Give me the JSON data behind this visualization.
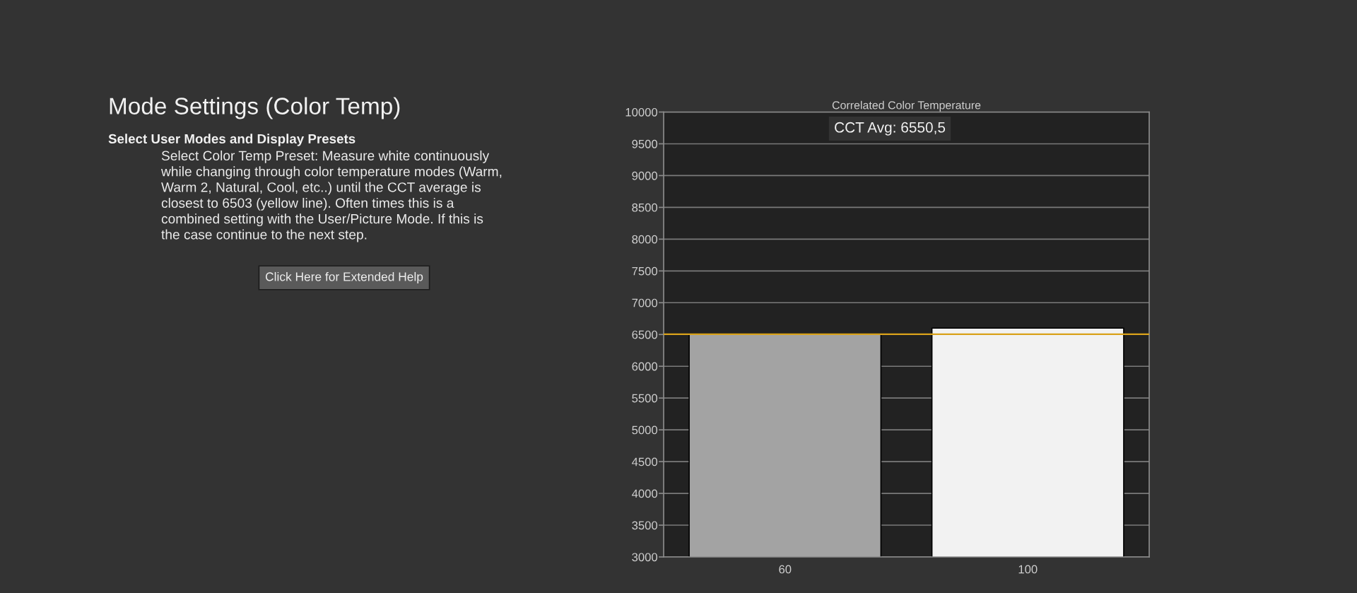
{
  "chart_data": {
    "type": "bar",
    "title": "Correlated Color Temperature",
    "categories": [
      "60",
      "100"
    ],
    "values": [
      6500,
      6600
    ],
    "colors": [
      "#a3a3a3",
      "#f2f2f2"
    ],
    "ylim": [
      3000,
      10000
    ],
    "yticks": [
      3000,
      3500,
      4000,
      4500,
      5000,
      5500,
      6000,
      6500,
      7000,
      7500,
      8000,
      8500,
      9000,
      9500,
      10000
    ],
    "grid": "y",
    "ref_lines": [
      {
        "axis": "y",
        "value": 6503,
        "color": "#d9a21b"
      }
    ],
    "annotations": [
      "Mode Settings (Color Temp)",
      "Select User Modes and Display Presets",
      "Select Color Temp Preset: Measure white continuously\nwhile changing through color temperature modes (Warm,\nWarm 2, Natural, Cool, etc..) until the CCT average is\nclosest to 6503 (yellow line). Often times this is a\ncombined setting with the User/Picture Mode. If this is\nthe case continue to the next step.",
      "Click Here for Extended Help",
      "CCT Avg: 6550,5"
    ]
  }
}
